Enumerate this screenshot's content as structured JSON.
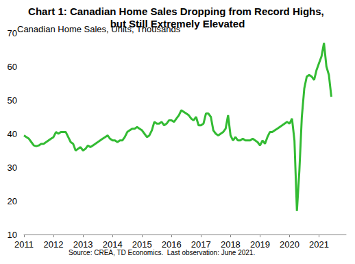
{
  "chart_data": {
    "type": "line",
    "title": "Chart 1: Canadian Home Sales Dropping from Record Highs, but Still Extremely Elevated",
    "y_label": "Canadian Home Sales, Units, Thousands",
    "source": "Source: CREA, TD Economics.  Last observation: June 2021.",
    "categories": [
      "2011",
      null,
      null,
      null,
      null,
      null,
      null,
      null,
      null,
      null,
      null,
      null,
      "2012",
      null,
      null,
      null,
      null,
      null,
      null,
      null,
      null,
      null,
      null,
      null,
      "2013",
      null,
      null,
      null,
      null,
      null,
      null,
      null,
      null,
      null,
      null,
      null,
      "2014",
      null,
      null,
      null,
      null,
      null,
      null,
      null,
      null,
      null,
      null,
      null,
      "2015",
      null,
      null,
      null,
      null,
      null,
      null,
      null,
      null,
      null,
      null,
      null,
      "2016",
      null,
      null,
      null,
      null,
      null,
      null,
      null,
      null,
      null,
      null,
      null,
      "2017",
      null,
      null,
      null,
      null,
      null,
      null,
      null,
      null,
      null,
      null,
      null,
      "2018",
      null,
      null,
      null,
      null,
      null,
      null,
      null,
      null,
      null,
      null,
      null,
      "2019",
      null,
      null,
      null,
      null,
      null,
      null,
      null,
      null,
      null,
      null,
      null,
      "2020",
      null,
      null,
      null,
      null,
      null,
      null,
      null,
      null,
      null,
      null,
      null,
      "2021",
      null,
      null,
      null,
      null,
      null,
      null,
      null,
      null,
      null,
      null,
      null
    ],
    "series": [
      {
        "name": "Canadian Home Sales",
        "color": "#33bb33",
        "values": [
          39.5,
          39,
          38.5,
          37.5,
          36.5,
          36.3,
          36.5,
          37,
          37,
          37.5,
          38,
          38.5,
          39,
          40.5,
          40,
          40.5,
          40.5,
          40.5,
          39,
          37.5,
          37,
          35,
          35.5,
          36,
          35,
          35.5,
          36.5,
          36,
          36.5,
          37,
          37.5,
          38,
          38.5,
          39,
          39.5,
          38.5,
          38,
          38,
          37.5,
          38,
          38,
          39,
          40.5,
          41,
          41.5,
          41.5,
          42,
          41.5,
          41,
          40,
          39,
          39.5,
          41,
          43.5,
          43,
          43,
          43.5,
          42.5,
          43,
          44,
          44,
          43.5,
          44.5,
          45.5,
          47,
          46.5,
          46,
          45.5,
          44.5,
          44,
          45,
          42.5,
          42.5,
          43,
          46,
          46,
          45,
          41,
          40,
          39.5,
          40,
          40.5,
          41.5,
          45.5,
          39.5,
          38,
          39,
          38,
          38,
          38.5,
          38,
          38,
          38,
          38.5,
          38,
          37.5,
          36.5,
          38,
          37,
          39,
          40.5,
          40.5,
          41,
          41.5,
          42,
          42.5,
          43,
          43.5,
          43,
          44.5,
          38,
          17,
          29,
          45,
          53.5,
          57,
          57.5,
          57,
          56,
          59,
          61,
          63,
          67,
          60,
          57.5,
          51,
          null,
          null,
          null,
          null,
          null,
          null
        ]
      }
    ],
    "ylim": [
      10,
      70
    ],
    "yticks": [
      10,
      20,
      30,
      40,
      50,
      60,
      70
    ],
    "grid": false
  }
}
